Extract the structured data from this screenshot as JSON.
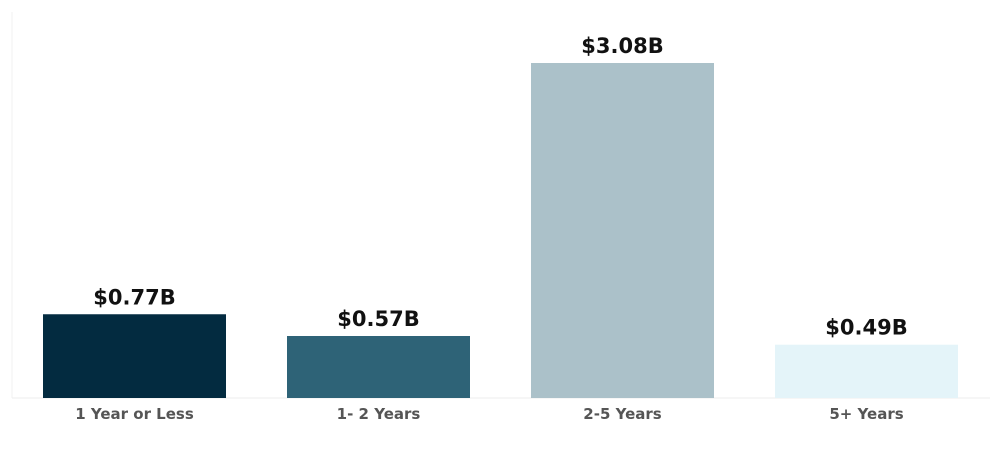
{
  "chart_data": {
    "type": "bar",
    "categories": [
      "1 Year or Less",
      "1- 2 Years",
      "2-5 Years",
      "5+ Years"
    ],
    "values": [
      0.77,
      0.57,
      3.08,
      0.49
    ],
    "value_labels": [
      "$0.77B",
      "$0.57B",
      "$3.08B",
      "$0.49B"
    ],
    "colors": [
      "#032b40",
      "#2e6377",
      "#abc1c9",
      "#e4f4f9"
    ],
    "ylim": [
      0,
      3.5
    ],
    "grid": false,
    "legend": "none"
  }
}
